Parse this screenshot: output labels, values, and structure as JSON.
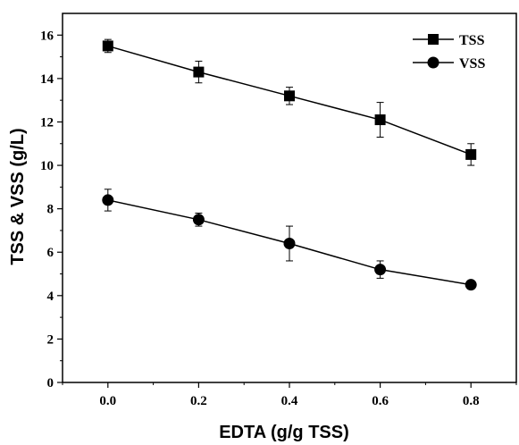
{
  "chart_data": {
    "type": "line",
    "title": "",
    "xlabel": "EDTA (g/g TSS)",
    "ylabel": "TSS & VSS (g/L)",
    "xlim": [
      -0.1,
      0.9
    ],
    "ylim": [
      0,
      17
    ],
    "x_ticks": [
      "0.0",
      "0.2",
      "0.4",
      "0.6",
      "0.8"
    ],
    "y_ticks": [
      "0",
      "2",
      "4",
      "6",
      "8",
      "10",
      "12",
      "14",
      "16"
    ],
    "grid": false,
    "legend_position": "top-right",
    "x": [
      0.0,
      0.2,
      0.4,
      0.6,
      0.8
    ],
    "series": [
      {
        "name": "TSS",
        "marker": "square",
        "values": [
          15.5,
          14.3,
          13.2,
          12.1,
          10.5
        ],
        "error": [
          0.3,
          0.5,
          0.4,
          0.8,
          0.5
        ]
      },
      {
        "name": "VSS",
        "marker": "circle",
        "values": [
          8.4,
          7.5,
          6.4,
          5.2,
          4.5
        ],
        "error": [
          0.5,
          0.3,
          0.8,
          0.4,
          0.1
        ]
      }
    ],
    "colors": {
      "line": "#000000",
      "marker": "#000000",
      "background": "#ffffff"
    }
  }
}
